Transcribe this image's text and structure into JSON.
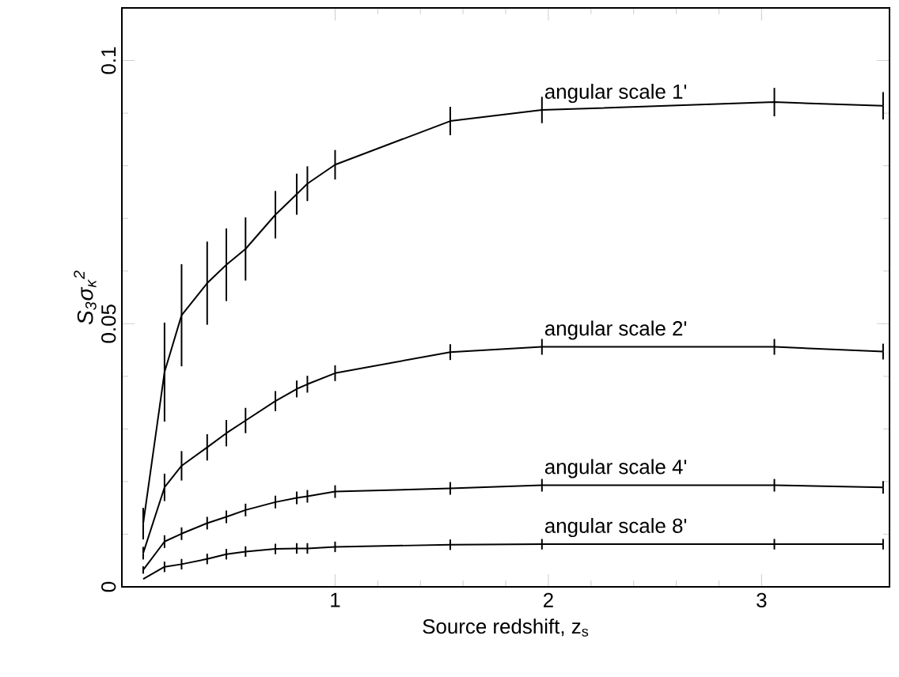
{
  "chart_data": {
    "type": "line",
    "xlabel": "Source redshift, z$_{s}$",
    "ylabel": "S$_{3}$σ$_{κ}$$^{2}$",
    "x": [
      0.1,
      0.2,
      0.28,
      0.4,
      0.49,
      0.58,
      0.72,
      0.82,
      0.87,
      1.0,
      1.54,
      1.97,
      3.06,
      3.57
    ],
    "series": [
      {
        "name": "angular scale 1'",
        "color": "#000000",
        "values": [
          0.012,
          0.0408,
          0.0516,
          0.0577,
          0.0612,
          0.0642,
          0.0707,
          0.0746,
          0.0766,
          0.0802,
          0.0885,
          0.0906,
          0.0921,
          0.0914
        ],
        "errors": [
          0.003,
          0.0094,
          0.0097,
          0.0079,
          0.0069,
          0.006,
          0.0045,
          0.0039,
          0.0033,
          0.0028,
          0.0027,
          0.0025,
          0.0027,
          0.0026
        ]
      },
      {
        "name": "angular scale 2'",
        "color": "#000000",
        "values": [
          0.0064,
          0.0189,
          0.023,
          0.0265,
          0.0292,
          0.0316,
          0.0353,
          0.0376,
          0.0385,
          0.0406,
          0.0446,
          0.0456,
          0.0456,
          0.0447
        ],
        "errors": [
          0.0012,
          0.0026,
          0.0028,
          0.0025,
          0.0025,
          0.0024,
          0.0019,
          0.0016,
          0.0016,
          0.0015,
          0.0015,
          0.0015,
          0.0015,
          0.0015
        ]
      },
      {
        "name": "angular scale 4'",
        "color": "#000000",
        "values": [
          0.0032,
          0.0086,
          0.0101,
          0.0121,
          0.0133,
          0.0146,
          0.0161,
          0.0169,
          0.0172,
          0.0181,
          0.0187,
          0.0193,
          0.0193,
          0.0189
        ],
        "errors": [
          0.0007,
          0.0012,
          0.0012,
          0.0012,
          0.0012,
          0.0012,
          0.0012,
          0.0012,
          0.0012,
          0.0012,
          0.0012,
          0.0012,
          0.0012,
          0.0012
        ]
      },
      {
        "name": "angular scale 8'",
        "color": "#000000",
        "values": [
          0.0015,
          0.0038,
          0.0043,
          0.0053,
          0.0062,
          0.0067,
          0.0072,
          0.0073,
          0.0073,
          0.0076,
          0.008,
          0.0081,
          0.0081,
          0.0081
        ],
        "errors": [
          null,
          0.001,
          0.001,
          0.001,
          0.001,
          0.001,
          0.001,
          0.001,
          0.001,
          0.001,
          0.001,
          0.001,
          0.001,
          0.001
        ]
      }
    ],
    "xlim": [
      0,
      3.6
    ],
    "ylim": [
      0,
      0.11
    ],
    "xticks": [
      1,
      2,
      3
    ],
    "yticks": [
      0,
      0.05,
      0.1
    ],
    "marker": "none",
    "line_style": "solid",
    "grid": false,
    "legend": false
  }
}
